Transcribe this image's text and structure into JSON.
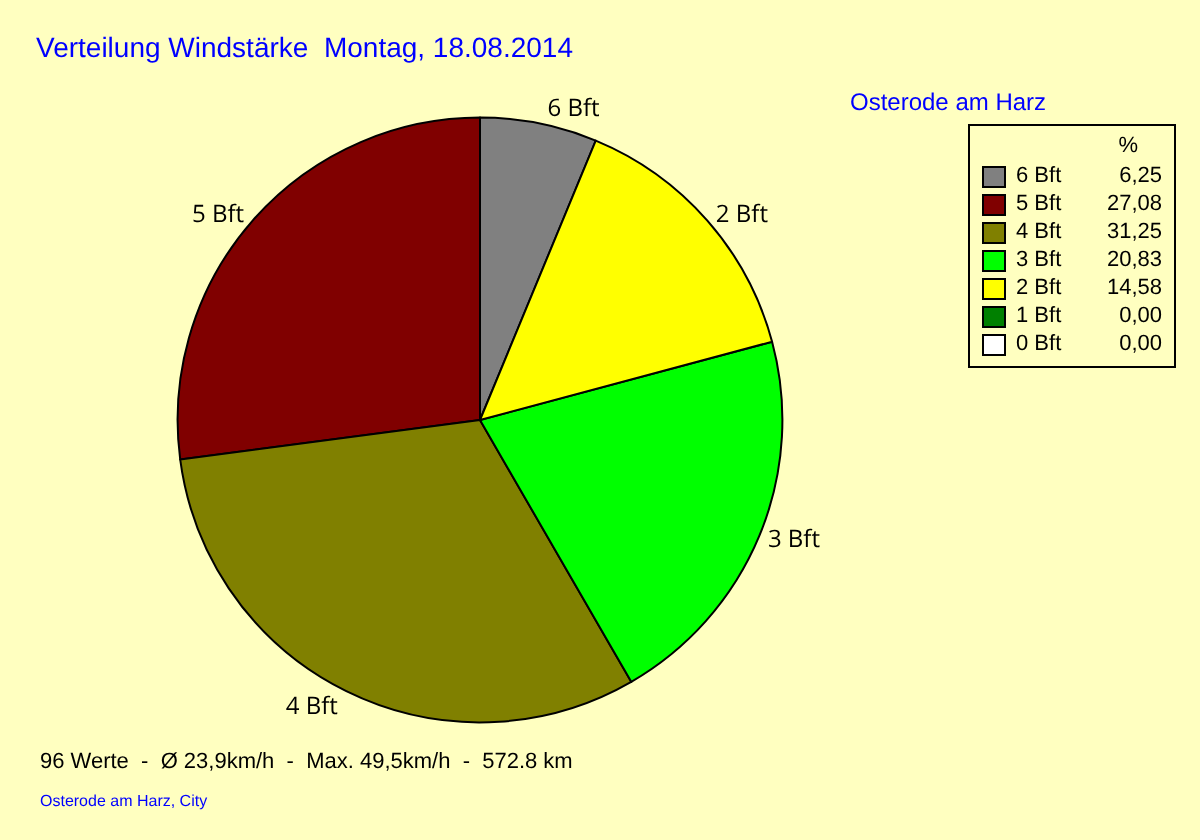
{
  "chart_data": {
    "type": "pie",
    "title": "Verteilung Windstärke  Montag, 18.08.2014",
    "subtitle": "Osterode am Harz",
    "categories": [
      "6 Bft",
      "5 Bft",
      "4 Bft",
      "3 Bft",
      "2 Bft",
      "1 Bft",
      "0 Bft"
    ],
    "values": [
      6.25,
      27.08,
      31.25,
      20.83,
      14.58,
      0,
      0
    ],
    "value_labels": [
      "6,25",
      "27,08",
      "31,25",
      "20,83",
      "14,58",
      "0,00",
      "0,00"
    ],
    "colors": [
      "#808080",
      "#800000",
      "#808000",
      "#00ff00",
      "#ffff00",
      "#008000",
      "#ffffff"
    ],
    "legend": "top right",
    "legend_title": "%",
    "annotations": [
      "96 Werte  -  Ø 23,9km/h  -  Max. 49,5km/h  -  572.8 km",
      "Osterode am Harz, City"
    ]
  }
}
